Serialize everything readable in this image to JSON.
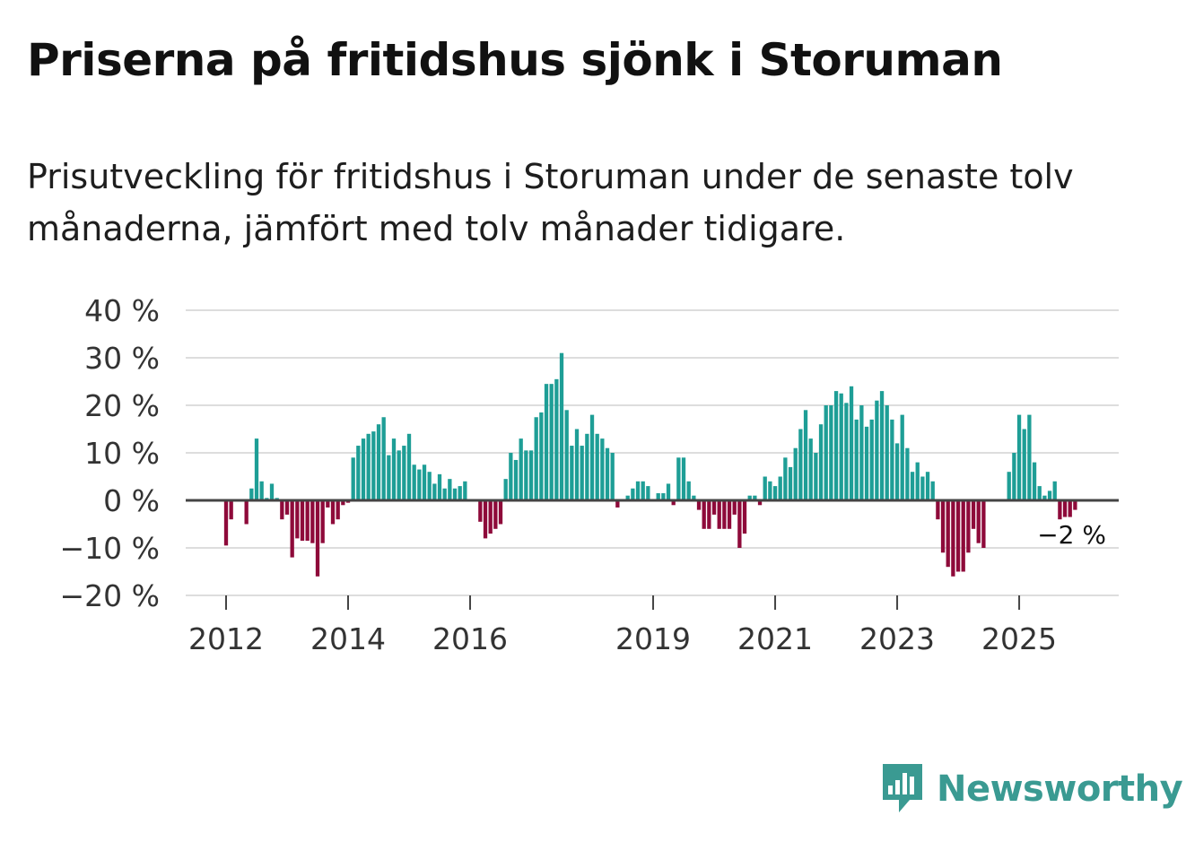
{
  "header": {
    "title": "Priserna på fritidshus sjönk i Storuman",
    "subtitle": "Prisutveckling för fritidshus i Storuman under de senaste tolv månaderna, jämfört med tolv månader tidigare."
  },
  "brand": {
    "name": "Newsworthy",
    "icon": "newsworthy-logo-icon"
  },
  "colors": {
    "positive": "#1e9e96",
    "negative": "#8e0a3a",
    "grid": "#dddddd",
    "zero_line": "#444444"
  },
  "chart_data": {
    "type": "bar",
    "title": "Priserna på fritidshus sjönk i Storuman",
    "xlabel": "",
    "ylabel": "",
    "ylim": [
      -20,
      40
    ],
    "y_ticks": [
      40,
      30,
      20,
      10,
      0,
      -10,
      -20
    ],
    "y_tick_labels": [
      "40 %",
      "30 %",
      "20 %",
      "10 %",
      "0 %",
      "−10 %",
      "−20 %"
    ],
    "x_tick_labels": [
      "2012",
      "2014",
      "2016",
      "2019",
      "2021",
      "2023",
      "2025"
    ],
    "x_tick_months": [
      0,
      24,
      48,
      84,
      108,
      132,
      156
    ],
    "start": "2012-01",
    "end_annotation": "−2 %",
    "values": [
      -9.5,
      -4,
      null,
      null,
      -5,
      2.5,
      13,
      4,
      0.5,
      3.5,
      0.5,
      -4,
      -3,
      -12,
      -8,
      -8.5,
      -8.5,
      -9,
      -16,
      -9,
      -1.5,
      -5,
      -4,
      -1,
      -0.5,
      9,
      11.5,
      13,
      14,
      14.5,
      16,
      17.5,
      9.5,
      13,
      10.5,
      11.5,
      14,
      7.5,
      6.5,
      7.5,
      6,
      3.5,
      5.5,
      2.5,
      4.5,
      2.5,
      3,
      4,
      null,
      null,
      -4.5,
      -8,
      -7,
      -6,
      -5,
      4.5,
      10,
      8.5,
      13,
      10.5,
      10.5,
      17.5,
      18.5,
      24.5,
      24.5,
      25.5,
      31,
      19,
      11.5,
      15,
      11.5,
      14,
      18,
      14,
      13,
      11,
      10,
      -1.5,
      null,
      1,
      2.5,
      4,
      4,
      3,
      null,
      1.5,
      1.5,
      3.5,
      -1,
      9,
      9,
      4,
      1,
      -2,
      -6,
      -6,
      -3,
      -6,
      -6,
      -6,
      -3,
      -10,
      -7,
      1,
      1,
      -1,
      5,
      4,
      3,
      5,
      9,
      7,
      11,
      15,
      19,
      13,
      10,
      16,
      20,
      20,
      23,
      22.5,
      20.5,
      24,
      17,
      20,
      15.5,
      17,
      21,
      23,
      20,
      17,
      12,
      18,
      11,
      6,
      8,
      5,
      6,
      4,
      -4,
      -11,
      -14,
      -16,
      -15,
      -15,
      -11,
      -6,
      -9,
      -10,
      null,
      null,
      null,
      null,
      6,
      10,
      18,
      15,
      18,
      8,
      3,
      1,
      2,
      4,
      -4,
      -3.5,
      -3.5,
      -2
    ]
  }
}
